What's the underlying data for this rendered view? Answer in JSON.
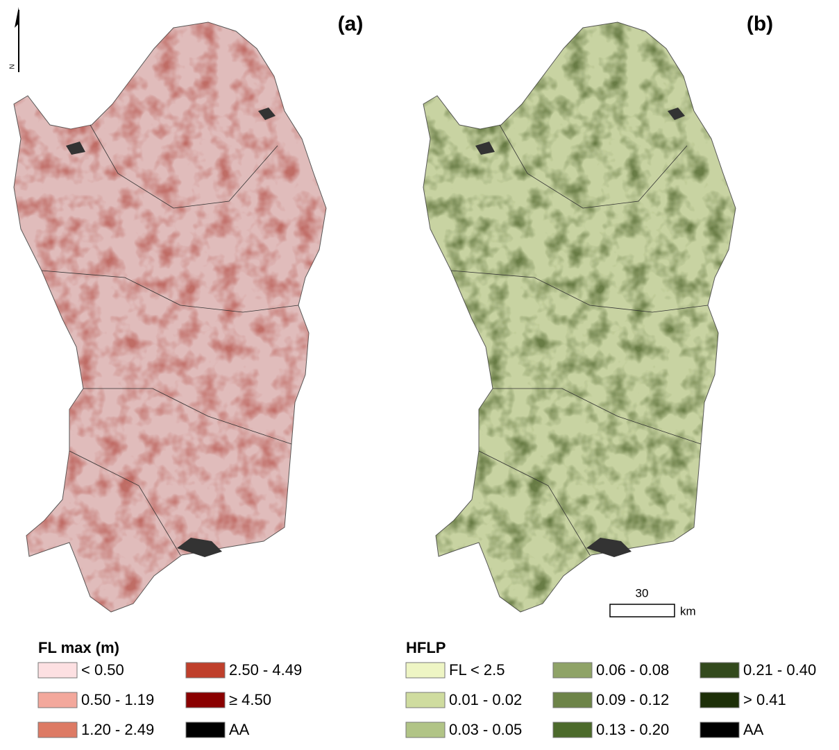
{
  "north_arrow": "N",
  "panels": [
    {
      "label": "(a)",
      "fill": "#e0bcbb",
      "speckle": "#b5524a",
      "legend": {
        "title": "FL max (m)",
        "items": [
          {
            "label": "< 0.50",
            "color": "#fde0e2"
          },
          {
            "label": "0.50 - 1.19",
            "color": "#f3a89c"
          },
          {
            "label": "1.20 - 2.49",
            "color": "#dd7a64"
          },
          {
            "label": "2.50 - 4.49",
            "color": "#bf3f2b"
          },
          {
            "label": "≥ 4.50",
            "color": "#8a0000"
          },
          {
            "label": "AA",
            "color": "#000000"
          }
        ]
      }
    },
    {
      "label": "(b)",
      "fill": "#c8d3a2",
      "speckle": "#4a6028",
      "legend": {
        "title": "HFLP",
        "items": [
          {
            "label": "FL < 2.5",
            "color": "#eef5c4"
          },
          {
            "label": "0.01 - 0.02",
            "color": "#cfdc9f"
          },
          {
            "label": "0.03 - 0.05",
            "color": "#b1c486"
          },
          {
            "label": "0.06 - 0.08",
            "color": "#8fa367"
          },
          {
            "label": "0.09 - 0.12",
            "color": "#6d8448"
          },
          {
            "label": "0.13 - 0.20",
            "color": "#4c6a2b"
          },
          {
            "label": "0.21 - 0.40",
            "color": "#334a1d"
          },
          {
            "label": "> 0.41",
            "color": "#1d2f08"
          },
          {
            "label": "AA",
            "color": "#000000"
          }
        ]
      }
    }
  ],
  "scale_bar": {
    "distance": 30,
    "unit": "km"
  }
}
